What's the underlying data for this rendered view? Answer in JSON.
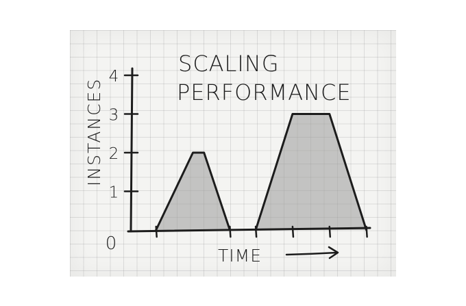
{
  "chart_data": {
    "type": "area",
    "title_lines": [
      "SCALING",
      "PERFORMANCE"
    ],
    "xlabel": "TIME",
    "ylabel": "INSTANCES",
    "yticks": [
      0,
      1,
      2,
      3,
      4
    ],
    "ylim": [
      0,
      4
    ],
    "grid": true,
    "series": [
      {
        "x": [
          0.5,
          1.5,
          1.8,
          2.5
        ],
        "values": [
          0,
          2,
          2,
          0
        ]
      },
      {
        "x": [
          3.2,
          4.2,
          5.2,
          6.2
        ],
        "values": [
          0,
          3,
          3,
          0
        ]
      }
    ],
    "xlim": [
      -0.2,
      6.3
    ],
    "xticks": [
      0.5,
      2.5,
      3.2,
      4.2,
      5.2,
      6.2
    ],
    "fill_color": "#9a9a9a",
    "ink_color": "#1c1c1c"
  }
}
